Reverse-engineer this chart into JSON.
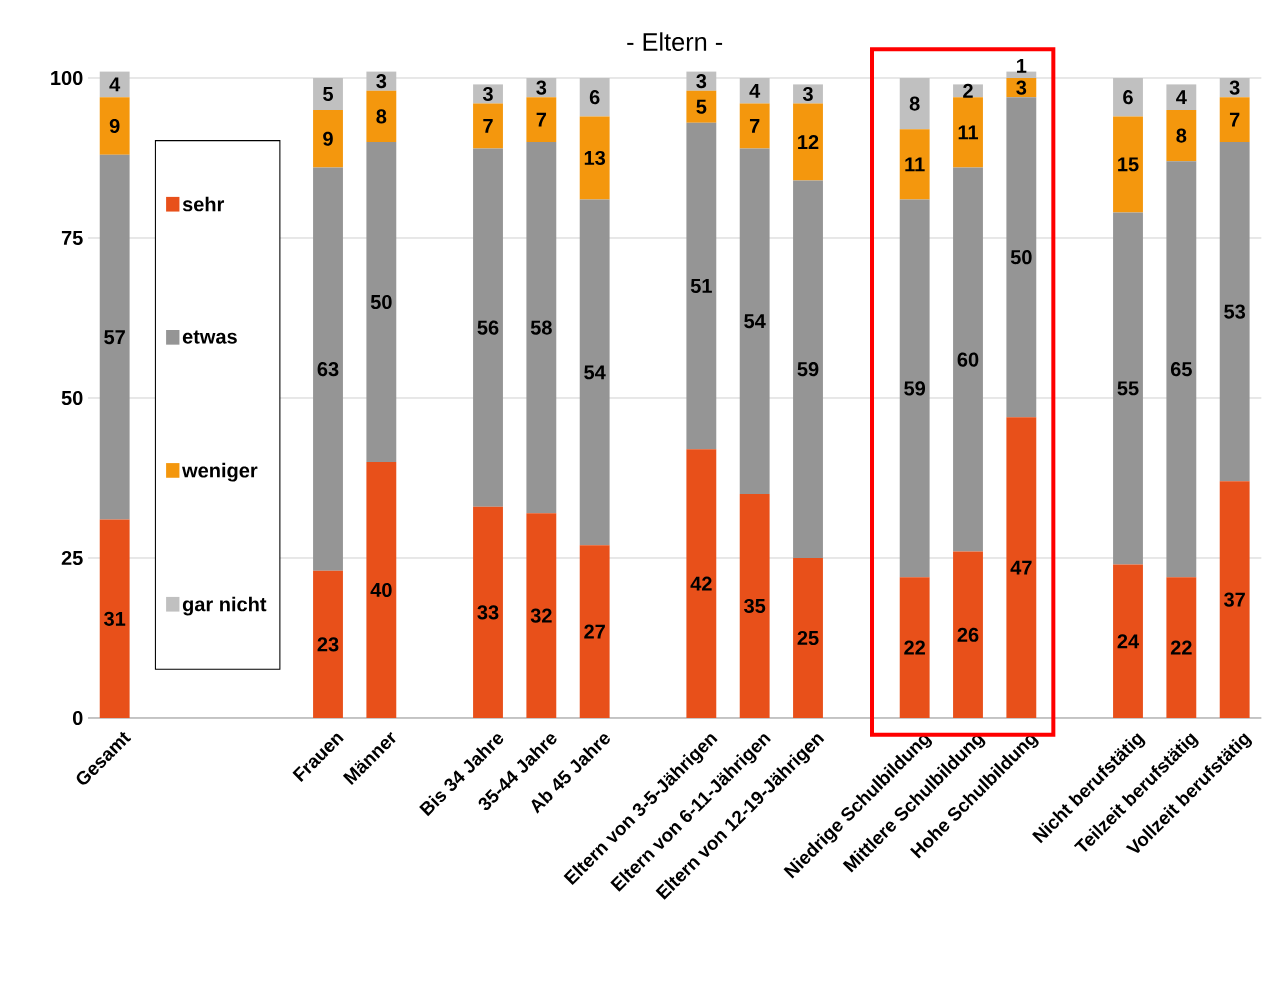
{
  "chart_data": {
    "type": "bar",
    "stacked": true,
    "title": "- Eltern -",
    "categories": [
      "Gesamt",
      null,
      null,
      null,
      "Frauen",
      "Männer",
      null,
      "Bis 34 Jahre",
      "35-44 Jahre",
      "Ab 45 Jahre",
      null,
      "Eltern von 3-5-Jährigen",
      "Eltern von 6-11-Jährigen",
      "Eltern von 12-19-Jährigen",
      null,
      "Niedrige Schulbildung",
      "Mittlere Schulbildung",
      "Hohe Schulbildung",
      null,
      "Nicht berufstätig",
      "Teilzeit berufstätig",
      "Vollzeit berufstätig"
    ],
    "series": [
      {
        "name": "sehr",
        "color": "#e8501a",
        "values": [
          31,
          null,
          null,
          null,
          23,
          40,
          null,
          33,
          32,
          27,
          null,
          42,
          35,
          25,
          null,
          22,
          26,
          47,
          null,
          24,
          22,
          37
        ]
      },
      {
        "name": "etwas",
        "color": "#959595",
        "values": [
          57,
          null,
          null,
          null,
          63,
          50,
          null,
          56,
          58,
          54,
          null,
          51,
          54,
          59,
          null,
          59,
          60,
          50,
          null,
          55,
          65,
          53
        ]
      },
      {
        "name": "weniger",
        "color": "#f4970d",
        "values": [
          9,
          null,
          null,
          null,
          9,
          8,
          null,
          7,
          7,
          13,
          null,
          5,
          7,
          12,
          null,
          11,
          11,
          3,
          null,
          15,
          8,
          7
        ]
      },
      {
        "name": "gar nicht",
        "color": "#c0c0c0",
        "values": [
          4,
          null,
          null,
          null,
          5,
          3,
          null,
          3,
          3,
          6,
          null,
          3,
          4,
          3,
          null,
          8,
          2,
          1,
          null,
          6,
          4,
          3
        ]
      }
    ],
    "ylim": [
      0,
      101
    ],
    "yticks": [
      0,
      25,
      50,
      75,
      100
    ],
    "grid": "y",
    "legend": "left",
    "data_labels": true
  }
}
